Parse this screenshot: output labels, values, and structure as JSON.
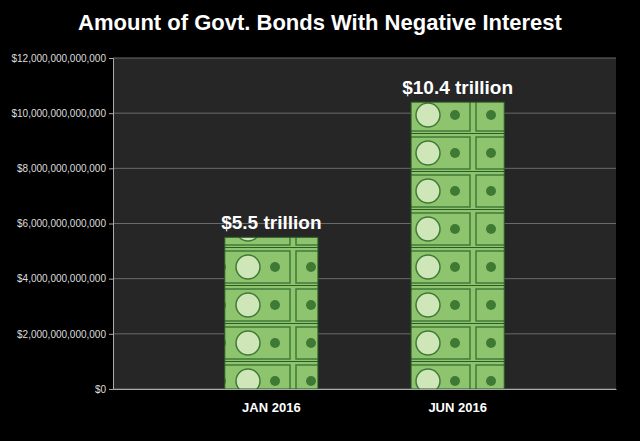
{
  "chart_data": {
    "type": "bar",
    "title": "Amount of Govt. Bonds With Negative Interest",
    "categories": [
      "JAN 2016",
      "JUN 2016"
    ],
    "values": [
      5500000000000,
      10400000000000
    ],
    "value_labels": [
      "$5.5 trillion",
      "$10.4 trillion"
    ],
    "data_labels": true,
    "color": "#8fc46f",
    "ylim": [
      0,
      12000000000000
    ],
    "yticks": [
      {
        "value": 0,
        "label": "$0"
      },
      {
        "value": 2000000000000,
        "label": "$2,000,000,000,000"
      },
      {
        "value": 4000000000000,
        "label": "$4,000,000,000,000"
      },
      {
        "value": 6000000000000,
        "label": "$6,000,000,000,000"
      },
      {
        "value": 8000000000000,
        "label": "$8,000,000,000,000"
      },
      {
        "value": 10000000000000,
        "label": "$10,000,000,000,000"
      },
      {
        "value": 12000000000000,
        "label": "$12,000,000,000,000"
      }
    ],
    "grid": true
  }
}
